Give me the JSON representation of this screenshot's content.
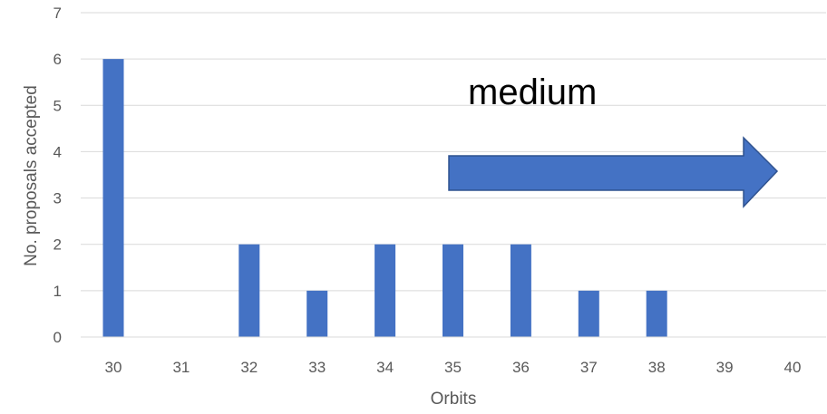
{
  "chart_data": {
    "type": "bar",
    "categories": [
      "30",
      "31",
      "32",
      "33",
      "34",
      "35",
      "36",
      "37",
      "38",
      "39",
      "40"
    ],
    "values": [
      6,
      0,
      2,
      1,
      2,
      2,
      2,
      1,
      1,
      0,
      0
    ],
    "xlabel": "Orbits",
    "ylabel": "No. proposals accepted",
    "ylim": [
      0,
      7
    ],
    "yticks": [
      "0",
      "1",
      "2",
      "3",
      "4",
      "5",
      "6",
      "7"
    ],
    "grid": true,
    "legend": "none",
    "bar_color": "#4472C4",
    "annotation": {
      "text": "medium",
      "arrow": "right-arrow-icon",
      "arrow_color": "#4472C4"
    }
  }
}
